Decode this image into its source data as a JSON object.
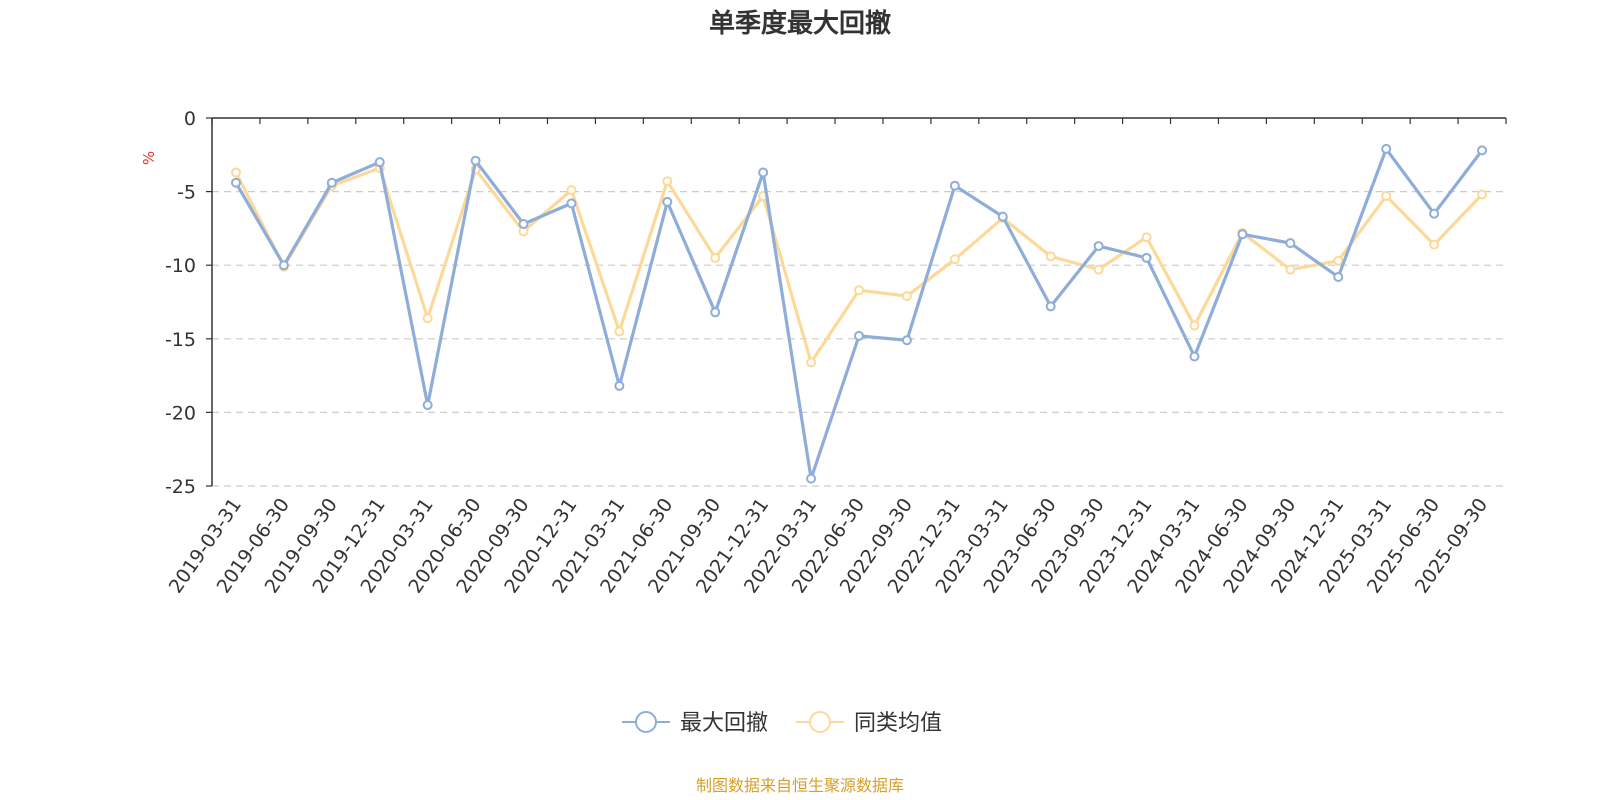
{
  "chart_data": {
    "type": "line",
    "title": "单季度最大回撤",
    "ylabel": "%",
    "ylim": [
      -25,
      0
    ],
    "yticks": [
      0,
      -5,
      -10,
      -15,
      -20,
      -25
    ],
    "grid": "horizontal-dashed",
    "categories": [
      "2019-03-31",
      "2019-06-30",
      "2019-09-30",
      "2019-12-31",
      "2020-03-31",
      "2020-06-30",
      "2020-09-30",
      "2020-12-31",
      "2021-03-31",
      "2021-06-30",
      "2021-09-30",
      "2021-12-31",
      "2022-03-31",
      "2022-06-30",
      "2022-09-30",
      "2022-12-31",
      "2023-03-31",
      "2023-06-30",
      "2023-09-30",
      "2023-12-31",
      "2024-03-31",
      "2024-06-30",
      "2024-09-30",
      "2024-12-31",
      "2025-03-31",
      "2025-06-30",
      "2025-09-30"
    ],
    "series": [
      {
        "name": "最大回撤",
        "color": "#8eadd9",
        "values": [
          -4.4,
          -10.0,
          -4.4,
          -3.0,
          -19.5,
          -2.9,
          -7.2,
          -5.8,
          -18.2,
          -5.7,
          -13.2,
          -3.7,
          -24.5,
          -14.8,
          -15.1,
          -4.6,
          -6.7,
          -12.8,
          -8.7,
          -9.5,
          -16.2,
          -7.9,
          -8.5,
          -10.8,
          -2.1,
          -6.5,
          -2.2
        ]
      },
      {
        "name": "同类均值",
        "color": "#fdd999",
        "values": [
          -3.7,
          -10.1,
          -4.6,
          -3.4,
          -13.6,
          -3.5,
          -7.7,
          -4.9,
          -14.5,
          -4.3,
          -9.5,
          -5.3,
          -16.6,
          -11.7,
          -12.1,
          -9.6,
          -6.8,
          -9.4,
          -10.3,
          -8.1,
          -14.1,
          -7.8,
          -10.3,
          -9.7,
          -5.3,
          -8.6,
          -5.2
        ]
      }
    ],
    "legend_position": "bottom-center",
    "source_note": "制图数据来自恒生聚源数据库",
    "source_color": "#d6a02c",
    "unit_color": "#e53935"
  }
}
